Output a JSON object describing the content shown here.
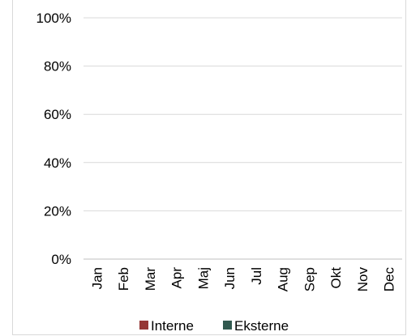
{
  "chart_data": {
    "type": "bar",
    "stacked": true,
    "title": "",
    "xlabel": "",
    "ylabel": "",
    "ylim": [
      0,
      1
    ],
    "y_ticks": [
      "0%",
      "20%",
      "40%",
      "60%",
      "80%",
      "100%"
    ],
    "grid": true,
    "legend_position": "bottom",
    "categories": [
      "Jan",
      "Feb",
      "Mar",
      "Apr",
      "Maj",
      "Jun",
      "Jul",
      "Aug",
      "Sep",
      "Okt",
      "Nov",
      "Dec"
    ],
    "series": [
      {
        "name": "Interne",
        "color": "#953735",
        "values": [
          0,
          0,
          0,
          0,
          0,
          0,
          0,
          0,
          0,
          0,
          0,
          0
        ]
      },
      {
        "name": "Eksterne",
        "color": "#31594f",
        "values": [
          0,
          0,
          0,
          0,
          0,
          0,
          0,
          0,
          0,
          0,
          0,
          0
        ]
      }
    ]
  }
}
